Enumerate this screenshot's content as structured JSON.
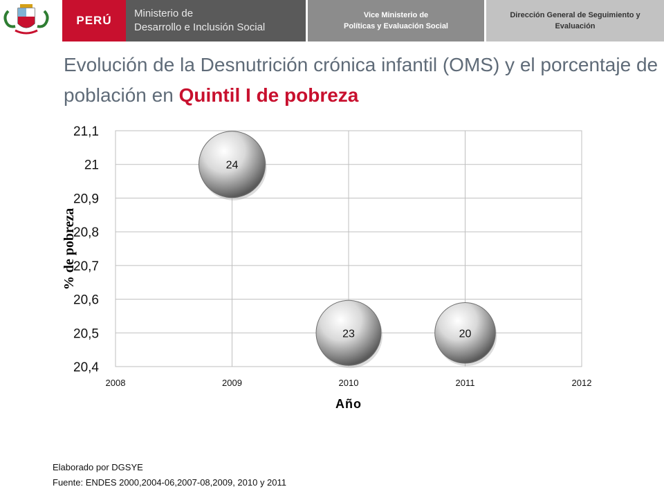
{
  "header": {
    "country": "PERÚ",
    "ministry_line1": "Ministerio de",
    "ministry_line2": "Desarrollo e Inclusión Social",
    "vice_line1": "Vice Ministerio de",
    "vice_line2": "Políticas y Evaluación Social",
    "direction_line1": "Dirección General de Seguimiento y",
    "direction_line2": "Evaluación"
  },
  "title": {
    "part1": "Evolución de la Desnutrición crónica infantil (OMS) y el porcentaje de población en ",
    "highlight": "Quintil I de pobreza"
  },
  "chart_data": {
    "type": "bubble",
    "xlabel": "Año",
    "ylabel": "% de pobreza",
    "xlim": [
      2008,
      2012
    ],
    "ylim": [
      20.4,
      21.1
    ],
    "x_ticks": [
      "2008",
      "2009",
      "2010",
      "2011",
      "2012"
    ],
    "y_ticks": [
      "20,4",
      "20,5",
      "20,6",
      "20,7",
      "20,8",
      "20,9",
      "21",
      "21,1"
    ],
    "grid": true,
    "points": [
      {
        "x": 2009,
        "y": 21.0,
        "size": 24,
        "label": "24"
      },
      {
        "x": 2010,
        "y": 20.5,
        "size": 23,
        "label": "23"
      },
      {
        "x": 2011,
        "y": 20.5,
        "size": 20,
        "label": "20"
      }
    ]
  },
  "footer": {
    "line1": "Elaborado por DGSYE",
    "line2": "Fuente: ENDES 2000,2004-06,2007-08,2009, 2010 y 2011"
  }
}
